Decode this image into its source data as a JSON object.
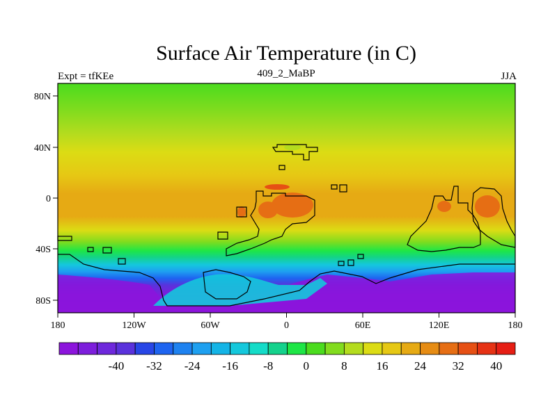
{
  "header": {
    "title": "Surface Air Temperature (in C)",
    "left_label": "Expt = tfKEe",
    "center_label": "409_2_MaBP",
    "right_label": "JJA"
  },
  "axes": {
    "x_ticks": [
      "180",
      "120W",
      "60W",
      "0",
      "60E",
      "120E",
      "180"
    ],
    "y_ticks": [
      "80N",
      "40N",
      "0",
      "40S",
      "80S"
    ]
  },
  "colorbar": {
    "labels": [
      "-40",
      "-32",
      "-24",
      "-16",
      "-8",
      "0",
      "8",
      "16",
      "24",
      "32",
      "40"
    ],
    "colors": [
      "#8c14dc",
      "#7d1edc",
      "#6e28dc",
      "#5a32dc",
      "#2846e6",
      "#1e64f0",
      "#1e82f0",
      "#1ea0f0",
      "#14b4e6",
      "#14c8dc",
      "#14dcc8",
      "#14d28c",
      "#1ee646",
      "#4bdc1e",
      "#82dc1e",
      "#b4dc1e",
      "#dcdc14",
      "#e6c814",
      "#e6aa14",
      "#e68c14",
      "#e66e14",
      "#e65014",
      "#e63214",
      "#e61e14"
    ]
  },
  "map": {
    "projection": "cylindrical equidistant",
    "lon_range": [
      -180,
      180
    ],
    "lat_range": [
      -90,
      90
    ],
    "field": "surface air temperature",
    "units": "C"
  }
}
